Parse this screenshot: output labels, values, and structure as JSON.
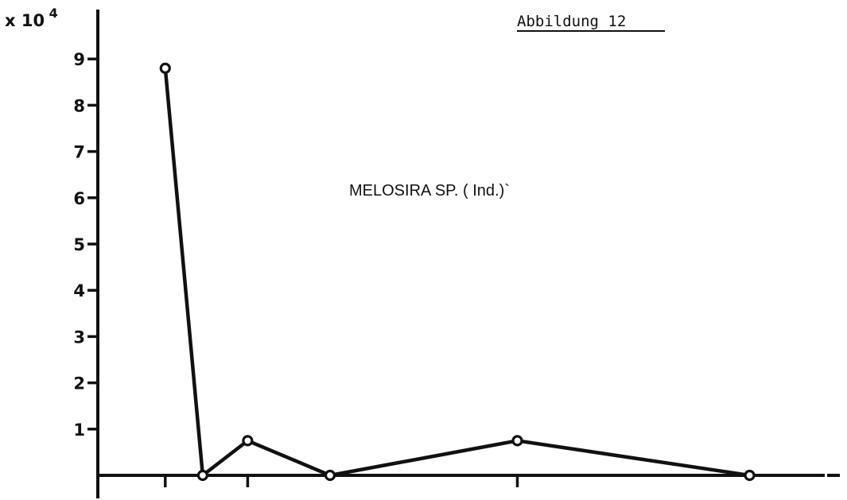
{
  "figure_title": "Abbildung 12",
  "chart_data": {
    "type": "line",
    "title": "",
    "xlabel": "",
    "ylabel": "",
    "y_multiplier": {
      "base": "x 10",
      "exponent": "4"
    },
    "ylim": [
      0,
      10
    ],
    "y_ticks": [
      "1",
      "2",
      "3",
      "4",
      "5",
      "6",
      "7",
      "8",
      "9"
    ],
    "xlim": [
      0,
      1
    ],
    "x_ticks": [
      0.09,
      0.2,
      0.56
    ],
    "grid": false,
    "series": [
      {
        "name": "MELOSIRA SP. ( Ind.)`",
        "x": [
          0.09,
          0.14,
          0.2,
          0.31,
          0.56,
          0.87
        ],
        "values": [
          8.8,
          0.0,
          0.75,
          0.0,
          0.75,
          0.0
        ]
      }
    ]
  }
}
